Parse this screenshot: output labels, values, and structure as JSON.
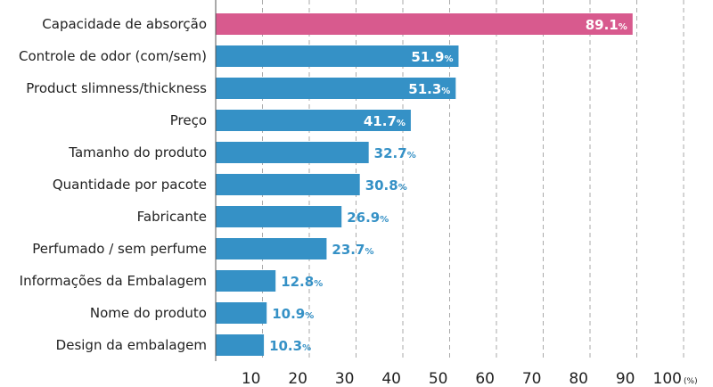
{
  "chart_data": {
    "type": "bar",
    "orientation": "horizontal",
    "categories": [
      "Capacidade de absorção",
      "Controle de odor (com/sem)",
      "Product slimness/thickness",
      "Preço",
      "Tamanho do produto",
      "Quantidade por pacote",
      "Fabricante",
      "Perfumado / sem perfume",
      "Informações da Embalagem",
      "Nome do produto",
      "Design da embalagem"
    ],
    "values": [
      89.1,
      51.9,
      51.3,
      41.7,
      32.7,
      30.8,
      26.9,
      23.7,
      12.8,
      10.9,
      10.3
    ],
    "value_suffix": "%",
    "xlim": [
      0,
      100
    ],
    "x_ticks": [
      10,
      20,
      30,
      40,
      50,
      60,
      70,
      80,
      90,
      100
    ],
    "x_unit": "(%)",
    "grid": true,
    "colors": {
      "highlight": "#d85a8e",
      "bar": "#3591c6",
      "label_outside": "#3591c6",
      "label_inside": "#ffffff",
      "grid": "#aaaaaa"
    },
    "highlight_index": 0
  }
}
